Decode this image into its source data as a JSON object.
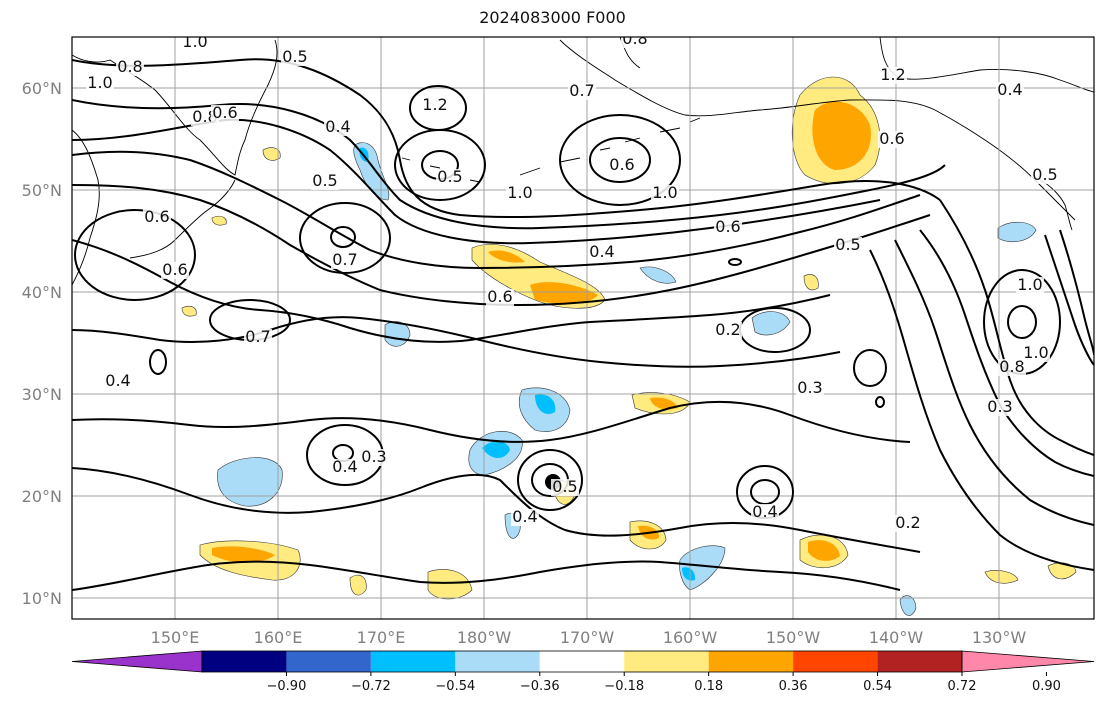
{
  "title": "2024083000 F000",
  "map": {
    "lat_labels": [
      "60°N",
      "50°N",
      "40°N",
      "30°N",
      "20°N",
      "10°N"
    ],
    "lon_labels": [
      "150°E",
      "160°E",
      "170°E",
      "180°W",
      "170°W",
      "160°W",
      "150°W",
      "140°W",
      "130°W"
    ],
    "contour_labels": [
      "1.0",
      "0.8",
      "1.0",
      "0.5",
      "0.8",
      "0.6",
      "0.4",
      "0.5",
      "0.6",
      "0.7",
      "0.6",
      "0.5",
      "0.7",
      "1.0",
      "0.6",
      "0.8",
      "1.2",
      "1.0",
      "0.6",
      "0.4",
      "0.7",
      "0.4",
      "0.6",
      "0.5",
      "0.2",
      "0.3",
      "0.4",
      "0.3",
      "0.5",
      "0.4",
      "0.4",
      "0.2",
      "0.4",
      "0.5",
      "0.3",
      "0.8",
      "1.0",
      "1.2",
      "0.6",
      "1.0"
    ],
    "colors": {
      "coast": "#000000",
      "grid": "#a0a0a0",
      "contour": "#000000"
    }
  },
  "colorbar": {
    "ticks": [
      "−0.90",
      "−0.72",
      "−0.54",
      "−0.36",
      "−0.18",
      "0.18",
      "0.36",
      "0.54",
      "0.72",
      "0.90"
    ],
    "colors": [
      "#9933cc",
      "#000080",
      "#3366cc",
      "#00bfff",
      "#aadcf8",
      "#ffffff",
      "#ffeb80",
      "#ffa500",
      "#ff4500",
      "#b22222",
      "#ff88aa"
    ]
  }
}
